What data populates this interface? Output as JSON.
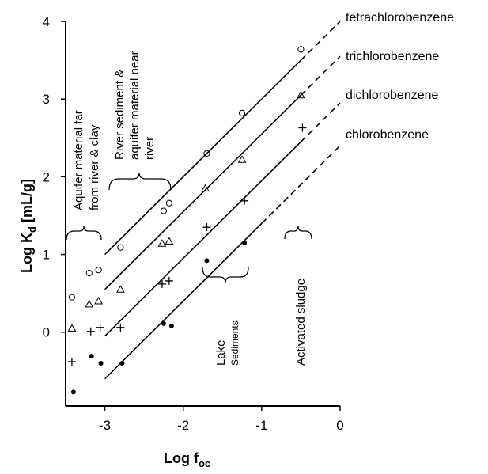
{
  "chart_data": {
    "type": "scatter",
    "xlabel": "Log f",
    "xlabel_sub": "oc",
    "ylabel": "Log K",
    "ylabel_sub": "d",
    "ylabel_unit": "[mL/g]",
    "xlim": [
      -3.5,
      0
    ],
    "ylim": [
      -0.95,
      4
    ],
    "xticks": [
      -3,
      -2,
      -1,
      0
    ],
    "xtick_labels": [
      "-3",
      "-2",
      "-1",
      "0"
    ],
    "yticks": [
      0,
      1,
      2,
      3,
      4
    ],
    "ytick_labels": [
      "0",
      "1",
      "2",
      "3",
      "4"
    ],
    "grid": false,
    "series": [
      {
        "name": "tetrachlorobenzene",
        "marker": "circle",
        "fit": {
          "x_solid": [
            -3.0,
            -0.5
          ],
          "x_dashed": [
            -0.5,
            0.0
          ],
          "intercept": 4.0,
          "slope": 1.0
        },
        "points": [
          [
            -3.42,
            0.45
          ],
          [
            -3.2,
            0.76
          ],
          [
            -3.08,
            0.8
          ],
          [
            -2.8,
            1.09
          ],
          [
            -2.25,
            1.56
          ],
          [
            -2.18,
            1.66
          ],
          [
            -1.7,
            2.3
          ],
          [
            -1.25,
            2.82
          ],
          [
            -0.5,
            3.64
          ]
        ]
      },
      {
        "name": "trichlorobenzene",
        "marker": "triangle",
        "fit": {
          "x_solid": [
            -3.0,
            -0.5
          ],
          "x_dashed": [
            -0.5,
            0.0
          ],
          "intercept": 3.55,
          "slope": 1.0
        },
        "points": [
          [
            -3.42,
            0.05
          ],
          [
            -3.2,
            0.36
          ],
          [
            -3.08,
            0.4
          ],
          [
            -2.8,
            0.55
          ],
          [
            -2.27,
            1.14
          ],
          [
            -2.18,
            1.17
          ],
          [
            -1.72,
            1.85
          ],
          [
            -1.25,
            2.22
          ],
          [
            -0.5,
            3.05
          ]
        ]
      },
      {
        "name": "dichlorobenzene",
        "marker": "plus",
        "fit": {
          "x_solid": [
            -3.0,
            -0.5
          ],
          "x_dashed": [
            -0.5,
            0.0
          ],
          "intercept": 2.95,
          "slope": 1.0
        },
        "points": [
          [
            -3.42,
            -0.38
          ],
          [
            -3.18,
            0.01
          ],
          [
            -3.06,
            0.06
          ],
          [
            -2.8,
            0.06
          ],
          [
            -2.27,
            0.62
          ],
          [
            -2.18,
            0.66
          ],
          [
            -1.7,
            1.35
          ],
          [
            -1.22,
            1.69
          ],
          [
            -0.48,
            2.63
          ]
        ]
      },
      {
        "name": "chlorobenzene",
        "marker": "dot",
        "fit": {
          "x_solid": [
            -3.0,
            -1.0
          ],
          "x_dashed": [
            -1.0,
            0.0
          ],
          "intercept": 2.4,
          "slope": 1.0
        },
        "points": [
          [
            -3.4,
            -0.77
          ],
          [
            -3.17,
            -0.31
          ],
          [
            -3.05,
            -0.4
          ],
          [
            -2.78,
            -0.4
          ],
          [
            -2.25,
            0.11
          ],
          [
            -2.15,
            0.08
          ],
          [
            -1.7,
            0.92
          ],
          [
            -1.22,
            1.15
          ]
        ]
      }
    ],
    "annotations": [
      {
        "lines": [
          "Aquifer material far",
          "from  river & clay"
        ]
      },
      {
        "lines": [
          "River sediment &",
          "aquifer material near",
          "river"
        ]
      },
      {
        "main": "Lake",
        "sub": "Sediments"
      },
      {
        "text": "Activated sludge"
      }
    ]
  }
}
